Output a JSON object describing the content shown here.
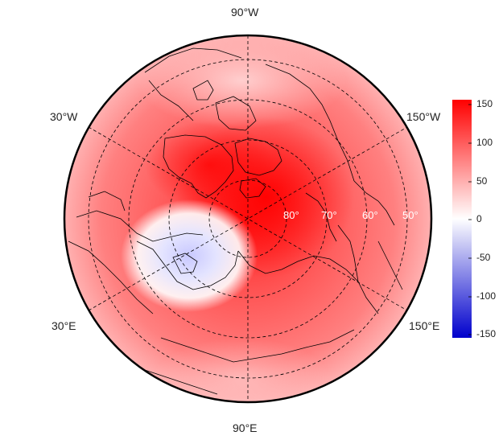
{
  "longitude_labels": {
    "top": "90°W",
    "upper_left": "30°W",
    "upper_right": "150°W",
    "lower_left": "30°E",
    "lower_right": "150°E",
    "bottom": "90°E"
  },
  "latitude_labels": [
    "80°",
    "70°",
    "60°",
    "50°"
  ],
  "colorbar": {
    "ticks": [
      "150",
      "100",
      "50",
      "0",
      "-50",
      "-100",
      "-150"
    ],
    "range": [
      -150,
      150
    ],
    "colors": {
      "max": "#ff0000",
      "mid": "#ffffff",
      "min": "#0000cc"
    }
  },
  "colors": {
    "ocean_border": "#000000",
    "grid_line": "#000000",
    "coastline": "#000000"
  }
}
